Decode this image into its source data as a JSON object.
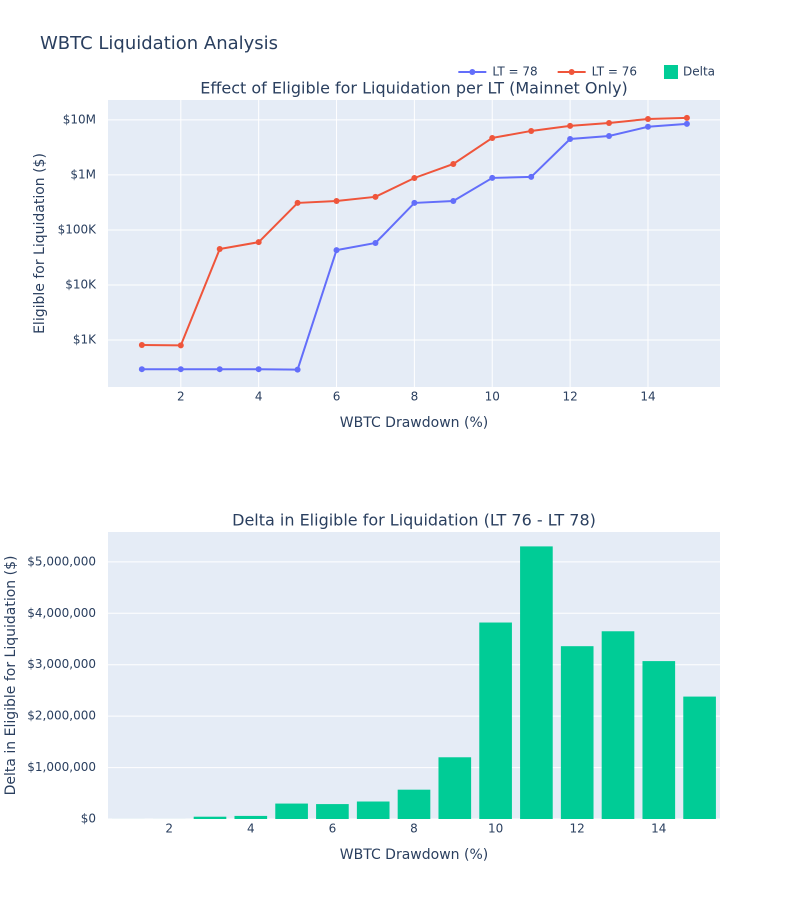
{
  "title": "WBTC Liquidation Analysis",
  "legend": "top-right",
  "chart_data": [
    {
      "type": "line",
      "title": "Effect of Eligible for Liquidation per LT (Mainnet Only)",
      "x_label": "WBTC Drawdown (%)",
      "y_label": "Eligible for Liquidation ($)",
      "log_y": true,
      "grid": true,
      "xgrid": true,
      "x": [
        1,
        2,
        3,
        4,
        5,
        6,
        7,
        8,
        9,
        10,
        11,
        12,
        13,
        14,
        15
      ],
      "xlim": [
        0.13,
        15.85
      ],
      "xticks": [
        2,
        4,
        6,
        8,
        10,
        12,
        14
      ],
      "ylim": [
        140,
        23000000
      ],
      "yticks": [
        {
          "value": 1000,
          "label": "$1K"
        },
        {
          "value": 10000,
          "label": "$10K"
        },
        {
          "value": 100000,
          "label": "$100K"
        },
        {
          "value": 1000000,
          "label": "$1M"
        },
        {
          "value": 10000000,
          "label": "$10M"
        }
      ],
      "series": [
        {
          "name": "LT = 78",
          "color": "#636efa",
          "values": [
            295,
            295,
            295,
            295,
            290,
            43000,
            58000,
            310000,
            336000,
            882000,
            920000,
            4500000,
            5100000,
            7500000,
            8450000
          ]
        },
        {
          "name": "LT = 76",
          "color": "#ef553b",
          "values": [
            811,
            800,
            45000,
            60000,
            310000,
            336000,
            400000,
            880000,
            1580000,
            4700000,
            6300000,
            7800000,
            8800000,
            10400000,
            10900000
          ]
        }
      ]
    },
    {
      "type": "bar",
      "title": "Delta in Eligible for Liquidation (LT 76 - LT 78)",
      "x_label": "WBTC Drawdown (%)",
      "y_label": "Delta in Eligible for Liquidation ($)",
      "log_y": false,
      "grid": true,
      "xgrid": false,
      "x": [
        1,
        2,
        3,
        4,
        5,
        6,
        7,
        8,
        9,
        10,
        11,
        12,
        13,
        14,
        15
      ],
      "xlim": [
        0.5,
        15.5
      ],
      "xticks": [
        2,
        4,
        6,
        8,
        10,
        12,
        14
      ],
      "ylim": [
        0,
        5580000
      ],
      "yticks": [
        {
          "value": 0,
          "label": "$0"
        },
        {
          "value": 1000000,
          "label": "$1,000,000"
        },
        {
          "value": 2000000,
          "label": "$2,000,000"
        },
        {
          "value": 3000000,
          "label": "$3,000,000"
        },
        {
          "value": 4000000,
          "label": "$4,000,000"
        },
        {
          "value": 5000000,
          "label": "$5,000,000"
        }
      ],
      "series": [
        {
          "name": "Delta",
          "color": "#00cc96",
          "values": [
            516,
            505,
            44700,
            60000,
            300000,
            290000,
            340000,
            570000,
            1200000,
            3820000,
            5300000,
            3360000,
            3650000,
            3070000,
            2380000
          ]
        }
      ]
    }
  ]
}
